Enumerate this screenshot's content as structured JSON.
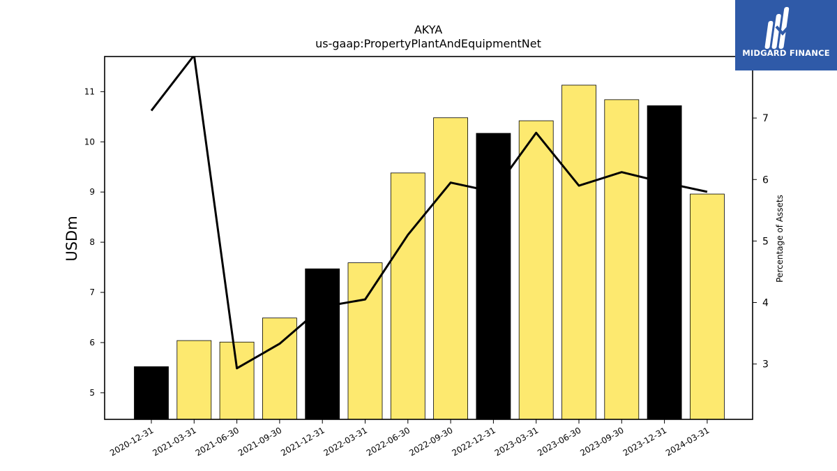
{
  "brand": {
    "name": "MIDGARD FINANCE",
    "logo_bg_color": "#2f5aa8",
    "logo_text_color": "#ffffff"
  },
  "chart_data": {
    "type": "bar",
    "title": "AKYA",
    "subtitle": "us-gaap:PropertyPlantAndEquipmentNet",
    "ylabel": "USDm",
    "ylabel_right": "Percentage of Assets",
    "categories": [
      "2020-12-31",
      "2021-03-31",
      "2021-06-30",
      "2021-09-30",
      "2021-12-31",
      "2022-03-31",
      "2022-06-30",
      "2022-09-30",
      "2022-12-31",
      "2023-03-31",
      "2023-06-30",
      "2023-09-30",
      "2023-12-31",
      "2024-03-31"
    ],
    "series": [
      {
        "type": "bar",
        "axis": "left",
        "values": [
          5.52,
          6.04,
          6.01,
          6.49,
          7.47,
          7.59,
          9.38,
          10.48,
          10.17,
          10.42,
          11.13,
          10.84,
          10.72,
          8.96
        ],
        "colors": [
          "#000000",
          "#fde96f",
          "#fde96f",
          "#fde96f",
          "#000000",
          "#fde96f",
          "#fde96f",
          "#fde96f",
          "#000000",
          "#fde96f",
          "#fde96f",
          "#fde96f",
          "#000000",
          "#fde96f"
        ]
      },
      {
        "type": "line",
        "axis": "right",
        "color": "#000000",
        "values": [
          7.12,
          8.02,
          2.93,
          3.33,
          3.93,
          4.05,
          5.1,
          5.95,
          5.8,
          6.76,
          5.9,
          6.12,
          5.95,
          5.8
        ]
      }
    ],
    "ylim": [
      4.47,
      11.7
    ],
    "yticks": [
      5,
      6,
      7,
      8,
      9,
      10,
      11
    ],
    "ylim_right": [
      2.1,
      8.0
    ],
    "yticks_right": [
      3,
      4,
      5,
      6,
      7
    ],
    "grid": false,
    "legend": "none"
  }
}
